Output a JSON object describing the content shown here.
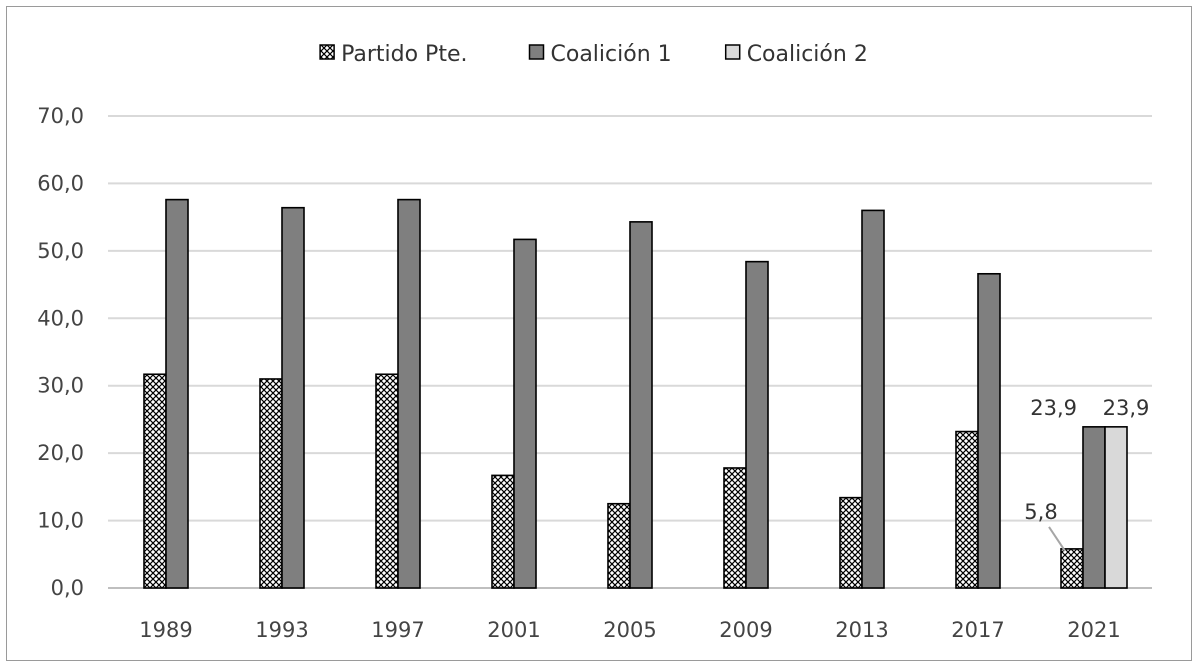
{
  "chart_data": {
    "type": "bar",
    "categories": [
      "1989",
      "1993",
      "1997",
      "2001",
      "2005",
      "2009",
      "2013",
      "2017",
      "2021"
    ],
    "series": [
      {
        "name": "Partido Pte.",
        "values": [
          31.7,
          31.0,
          31.7,
          16.7,
          12.5,
          17.8,
          13.4,
          23.2,
          5.8
        ],
        "fill": "pattern-crosshatch"
      },
      {
        "name": "Coalición 1",
        "values": [
          57.6,
          56.4,
          57.6,
          51.7,
          54.3,
          48.4,
          56.0,
          46.6,
          23.9
        ],
        "fill": "#7f7f7f"
      },
      {
        "name": "Coalición 2",
        "values": [
          null,
          null,
          null,
          null,
          null,
          null,
          null,
          null,
          23.9
        ],
        "fill": "#d9d9d9"
      }
    ],
    "data_labels": [
      {
        "series": "Coalición 1",
        "category": "2021",
        "text": "23,9"
      },
      {
        "series": "Coalición 2",
        "category": "2021",
        "text": "23,9"
      },
      {
        "series": "Partido Pte.",
        "category": "2021",
        "text": "5,8"
      }
    ],
    "yticks": [
      "0,0",
      "10,0",
      "20,0",
      "30,0",
      "40,0",
      "50,0",
      "60,0",
      "70,0"
    ],
    "ylim": [
      0,
      70
    ],
    "ystep": 10,
    "grid": true,
    "legend_position": "top-center",
    "colors": {
      "gridline": "#d9d9d9",
      "bar_outline": "#000000",
      "axis": "#bfbfbf",
      "frame": "#9a9a9a"
    }
  }
}
